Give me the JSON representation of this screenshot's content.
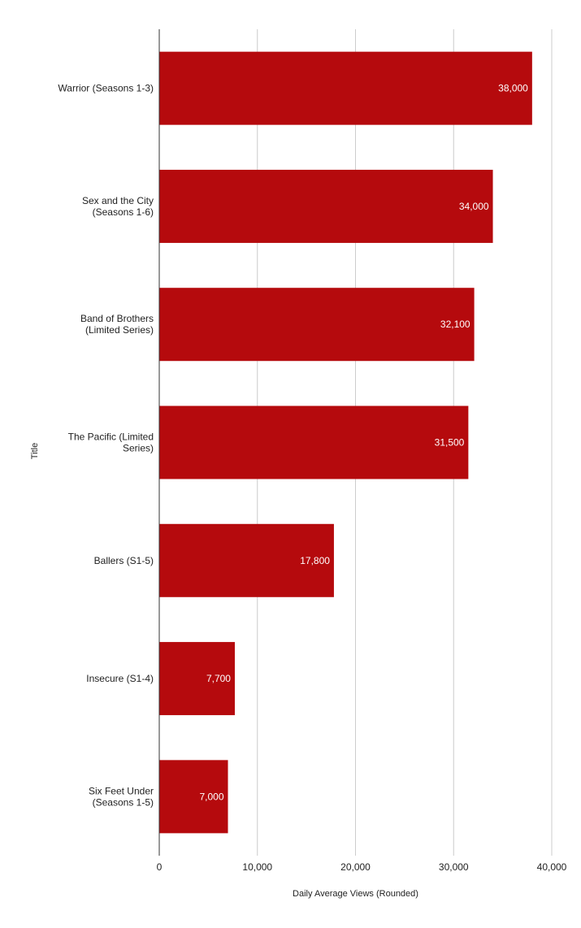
{
  "chart_data": {
    "type": "bar",
    "orientation": "horizontal",
    "categories": [
      [
        "Warrior (Seasons 1-3)"
      ],
      [
        "Sex and the City",
        "(Seasons 1-6)"
      ],
      [
        "Band of Brothers",
        "(Limited Series)"
      ],
      [
        "The Pacific (Limited",
        "Series)"
      ],
      [
        "Ballers (S1-5)"
      ],
      [
        "Insecure (S1-4)"
      ],
      [
        "Six Feet Under",
        "(Seasons 1-5)"
      ]
    ],
    "values": [
      38000,
      34000,
      32100,
      31500,
      17800,
      7700,
      7000
    ],
    "data_labels": [
      "38,000",
      "34,000",
      "32,100",
      "31,500",
      "17,800",
      "7,700",
      "7,000"
    ],
    "xlabel": "Daily Average Views (Rounded)",
    "ylabel": "Title",
    "xlim": [
      0,
      40000
    ],
    "x_ticks": [
      0,
      10000,
      20000,
      30000,
      40000
    ],
    "x_tick_labels": [
      "0",
      "10,000",
      "20,000",
      "30,000",
      "40,000"
    ],
    "grid": true,
    "legend": "none",
    "colors": {
      "bar": "#b50a0d",
      "grid": "#cccccc",
      "axis": "#333333"
    }
  }
}
